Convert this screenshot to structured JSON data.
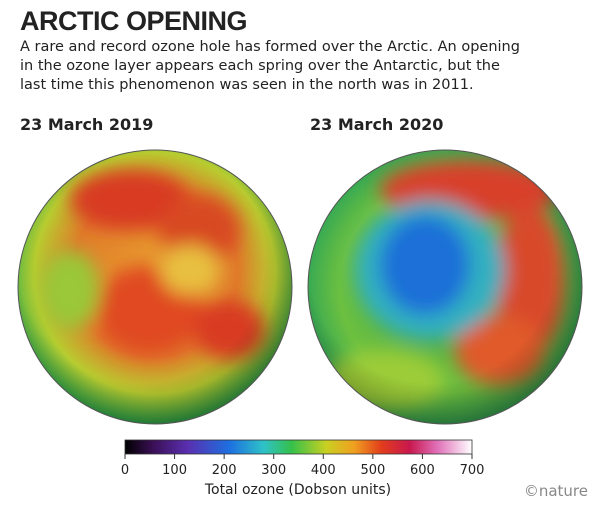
{
  "header": {
    "title": "ARCTIC OPENING",
    "subtitle": [
      "A rare and record ozone hole has formed over the Arctic. An opening",
      "in the ozone layer appears each spring over the Antarctic, but the",
      "last time this phenomenon was seen in the north was in 2011."
    ]
  },
  "maps": [
    {
      "label": "23 March 2019"
    },
    {
      "label": "23 March 2020"
    }
  ],
  "colorbar": {
    "lim": [
      0,
      700
    ],
    "ticks": [
      0,
      100,
      200,
      300,
      400,
      500,
      600,
      700
    ],
    "label": "Total ozone (Dobson units)"
  },
  "credit": "©nature"
}
